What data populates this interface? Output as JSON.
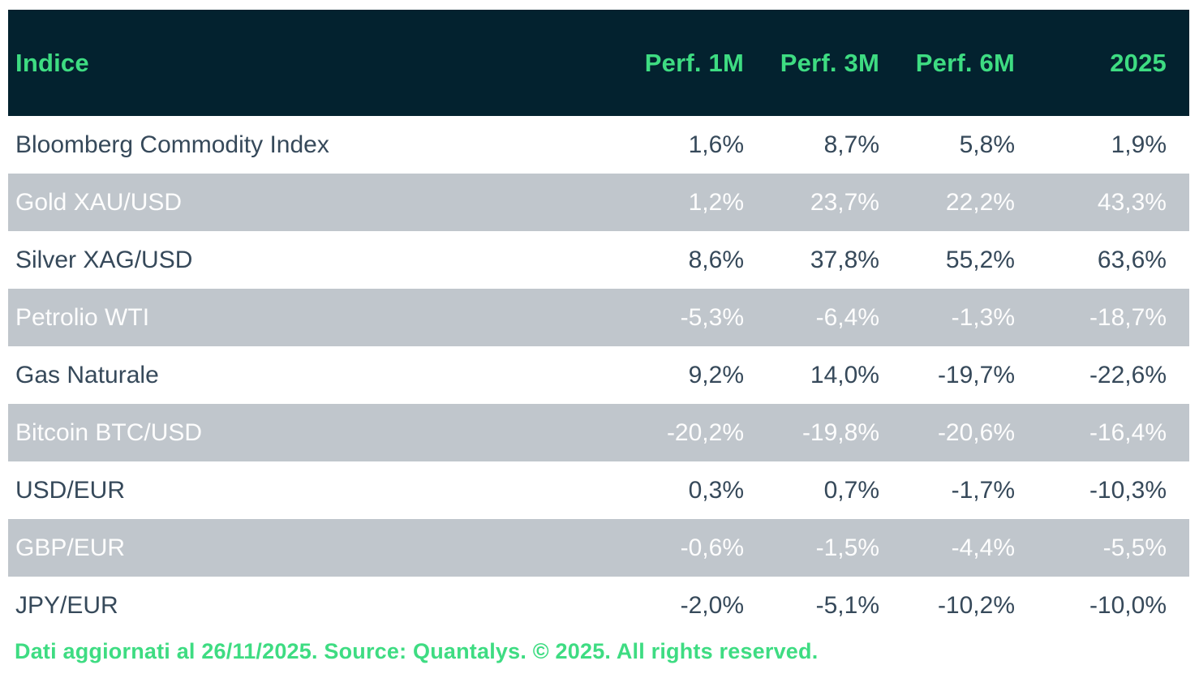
{
  "table": {
    "columns": [
      "Indice",
      "Perf. 1M",
      "Perf. 3M",
      "Perf. 6M",
      "2025"
    ],
    "rows": [
      {
        "name": "Bloomberg Commodity Index",
        "values": [
          "1,6%",
          "8,7%",
          "5,8%",
          "1,9%"
        ]
      },
      {
        "name": "Gold XAU/USD",
        "values": [
          "1,2%",
          "23,7%",
          "22,2%",
          "43,3%"
        ]
      },
      {
        "name": "Silver XAG/USD",
        "values": [
          "8,6%",
          "37,8%",
          "55,2%",
          "63,6%"
        ]
      },
      {
        "name": "Petrolio WTI",
        "values": [
          "-5,3%",
          "-6,4%",
          "-1,3%",
          "-18,7%"
        ]
      },
      {
        "name": "Gas Naturale",
        "values": [
          "9,2%",
          "14,0%",
          "-19,7%",
          "-22,6%"
        ]
      },
      {
        "name": "Bitcoin BTC/USD",
        "values": [
          "-20,2%",
          "-19,8%",
          "-20,6%",
          "-16,4%"
        ]
      },
      {
        "name": "USD/EUR",
        "values": [
          "0,3%",
          "0,7%",
          "-1,7%",
          "-10,3%"
        ]
      },
      {
        "name": "GBP/EUR",
        "values": [
          "-0,6%",
          "-1,5%",
          "-4,4%",
          "-5,5%"
        ]
      },
      {
        "name": "JPY/EUR",
        "values": [
          "-2,0%",
          "-5,1%",
          "-10,2%",
          "-10,0%"
        ]
      }
    ]
  },
  "footer": {
    "text": "Dati aggiornati al 26/11/2025. Source: Quantalys. © 2025. All rights reserved."
  },
  "colors": {
    "header_bg": "#03222F",
    "accent_green": "#3EDC82",
    "stripe_bg": "#C0C6CC",
    "row_text": "#36495A"
  },
  "chart_data": {
    "type": "table",
    "title": "Indice",
    "columns": [
      "Indice",
      "Perf. 1M",
      "Perf. 3M",
      "Perf. 6M",
      "2025"
    ],
    "rows": [
      [
        "Bloomberg Commodity Index",
        1.6,
        8.7,
        5.8,
        1.9
      ],
      [
        "Gold XAU/USD",
        1.2,
        23.7,
        22.2,
        43.3
      ],
      [
        "Silver XAG/USD",
        8.6,
        37.8,
        55.2,
        63.6
      ],
      [
        "Petrolio WTI",
        -5.3,
        -6.4,
        -1.3,
        -18.7
      ],
      [
        "Gas Naturale",
        9.2,
        14.0,
        -19.7,
        -22.6
      ],
      [
        "Bitcoin BTC/USD",
        -20.2,
        -19.8,
        -20.6,
        -16.4
      ],
      [
        "USD/EUR",
        0.3,
        0.7,
        -1.7,
        -10.3
      ],
      [
        "GBP/EUR",
        -0.6,
        -1.5,
        -4.4,
        -5.5
      ],
      [
        "JPY/EUR",
        -2.0,
        -5.1,
        -10.2,
        -10.0
      ]
    ],
    "units": "percent",
    "note": "Dati aggiornati al 26/11/2025. Source: Quantalys. © 2025. All rights reserved."
  }
}
